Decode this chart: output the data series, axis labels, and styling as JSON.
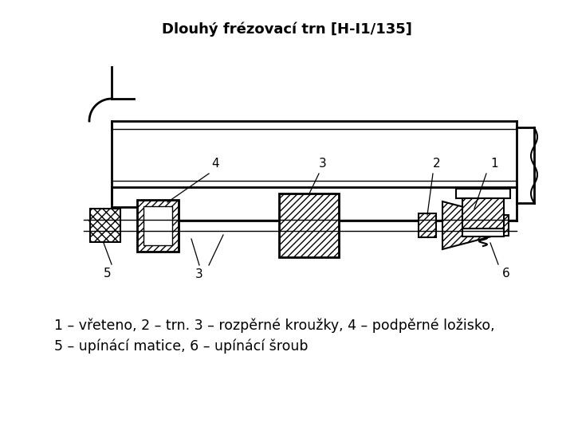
{
  "title": "Dlouhý frézovací trn [H-I1/135]",
  "title_fontsize": 13,
  "title_fontweight": "bold",
  "caption_line1": "1 – vřeteno, 2 – trn. 3 – rozpěrné kroužky, 4 – podpěrné ložisko,",
  "caption_line2": "5 – upínácí matice, 6 – upínácí šroub",
  "caption_fontsize": 12.5,
  "bg_color": "#ffffff",
  "drawing_color": "#000000",
  "fig_width": 7.2,
  "fig_height": 5.4,
  "dpi": 100
}
